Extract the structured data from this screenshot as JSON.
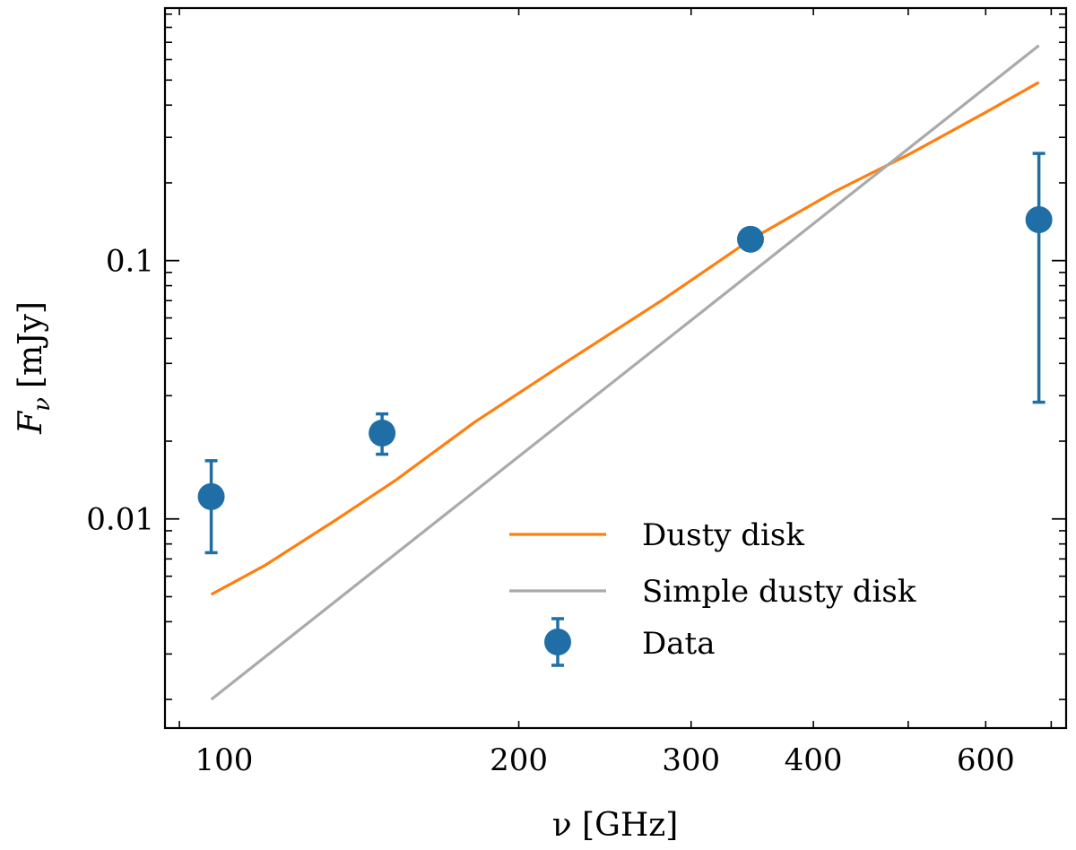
{
  "chart_data": {
    "type": "scatter",
    "xscale": "log",
    "yscale": "log",
    "xlim": [
      87,
      725
    ],
    "ylim": [
      0.00155,
      0.95
    ],
    "xlabel": "ν [GHz]",
    "ylabel": "F_ν [mJy]",
    "ylabel_parts": {
      "symbol": "F",
      "subscript": "ν",
      "unit": "[mJy]"
    },
    "x_ticks_major": [
      100,
      200,
      300,
      400,
      600
    ],
    "x_tick_labels": [
      "100",
      "200",
      "300",
      "400",
      "600"
    ],
    "y_ticks_major": [
      0.01,
      0.1
    ],
    "y_tick_labels": [
      "0.01",
      "0.1"
    ],
    "legend": {
      "placement": "lower-right"
    },
    "series": [
      {
        "name": "Dusty disk",
        "kind": "line",
        "color": "#ff7f0e",
        "x": [
          97,
          110,
          130,
          150,
          180,
          220,
          280,
          345,
          420,
          500,
          600,
          680
        ],
        "y": [
          0.0051,
          0.0066,
          0.0099,
          0.0142,
          0.0236,
          0.0389,
          0.0701,
          0.1205,
          0.1846,
          0.257,
          0.375,
          0.49
        ]
      },
      {
        "name": "Simple dusty disk",
        "kind": "line",
        "color": "#aaaaaa",
        "x": [
          97,
          680
        ],
        "y": [
          0.002,
          0.68
        ]
      },
      {
        "name": "Data",
        "kind": "errorbar",
        "color": "#1f6fa6",
        "points": [
          {
            "x": 97,
            "y": 0.0122,
            "ylow": 0.0074,
            "yhigh": 0.0168
          },
          {
            "x": 145,
            "y": 0.0215,
            "ylow": 0.0178,
            "yhigh": 0.0255
          },
          {
            "x": 345,
            "y": 0.121,
            "ylow": 0.115,
            "yhigh": 0.127
          },
          {
            "x": 680,
            "y": 0.144,
            "ylow": 0.0283,
            "yhigh": 0.26
          }
        ]
      }
    ]
  }
}
